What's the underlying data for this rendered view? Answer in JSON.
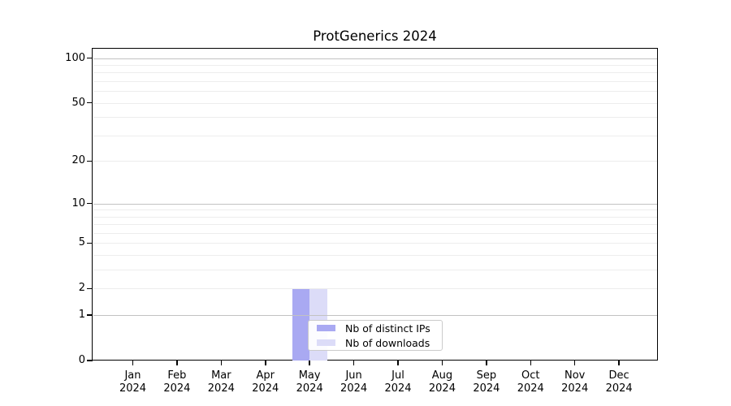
{
  "chart_data": {
    "type": "bar",
    "title": "ProtGenerics 2024",
    "xlabel": "",
    "ylabel": "",
    "yscale": "log10(1+x)",
    "ylim": [
      0,
      117
    ],
    "yticks": [
      0,
      1,
      2,
      5,
      10,
      20,
      50,
      100
    ],
    "gridlines": {
      "minor": [
        2,
        3,
        4,
        5,
        6,
        7,
        8,
        9,
        20,
        30,
        40,
        50,
        60,
        70,
        80,
        90
      ],
      "major": [
        1,
        10,
        100
      ],
      "grid_on": true
    },
    "categories": [
      "Jan 2024",
      "Feb 2024",
      "Mar 2024",
      "Apr 2024",
      "May 2024",
      "Jun 2024",
      "Jul 2024",
      "Aug 2024",
      "Sep 2024",
      "Oct 2024",
      "Nov 2024",
      "Dec 2024"
    ],
    "series": [
      {
        "name": "Nb of distinct IPs",
        "color": "#a9a9f2",
        "values": [
          0,
          0,
          0,
          0,
          2,
          0,
          0,
          0,
          0,
          0,
          0,
          0
        ]
      },
      {
        "name": "Nb of downloads",
        "color": "#dcdcf8",
        "values": [
          0,
          0,
          0,
          0,
          2,
          0,
          0,
          0,
          0,
          0,
          0,
          0
        ]
      }
    ],
    "legend": {
      "position": "inside-bottom-center"
    },
    "colors": {
      "grid_minor": "#ededed",
      "grid_major": "#c2c2c2",
      "axis": "#000000",
      "background": "#ffffff"
    }
  }
}
